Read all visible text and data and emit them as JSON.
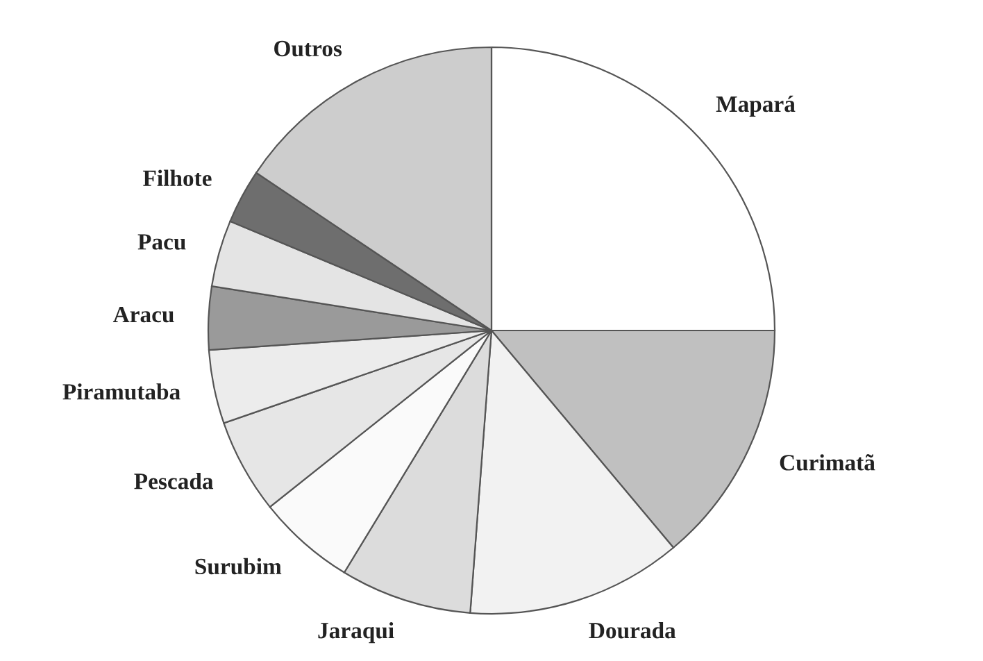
{
  "chart_data": {
    "type": "pie",
    "categories": [
      "Mapará",
      "Curimatã",
      "Dourada",
      "Jaraqui",
      "Surubim",
      "Pescada",
      "Piramutaba",
      "Aracu",
      "Pacu",
      "Filhote",
      "Outros"
    ],
    "values": [
      25,
      13.9,
      12.3,
      7.5,
      5.6,
      5.4,
      4.2,
      3.6,
      3.8,
      3.1,
      15.6
    ],
    "colors": [
      "#ffffff",
      "#c0c0c0",
      "#f2f2f2",
      "#dcdcdc",
      "#fafafa",
      "#e6e6e6",
      "#ececec",
      "#9a9a9a",
      "#e4e4e4",
      "#6e6e6e",
      "#cdcdcd"
    ]
  }
}
